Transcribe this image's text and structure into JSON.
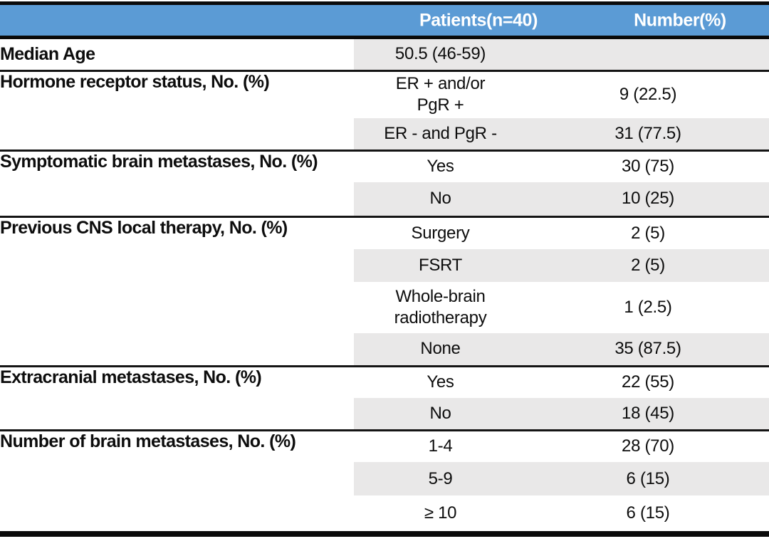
{
  "header": {
    "patients": "Patients(n=40)",
    "number": "Number(%)"
  },
  "sections": [
    {
      "label": "Median Age",
      "rows": [
        {
          "patients": "50.5 (46-59)",
          "number": ""
        }
      ]
    },
    {
      "label": "Hormone receptor status, No. (%)",
      "rows": [
        {
          "patients": "ER + and/or\nPgR +",
          "number": "9 (22.5)"
        },
        {
          "patients": "ER - and PgR -",
          "number": "31 (77.5)"
        }
      ]
    },
    {
      "label": "Symptomatic brain metastases, No. (%)",
      "rows": [
        {
          "patients": "Yes",
          "number": "30 (75)"
        },
        {
          "patients": "No",
          "number": "10 (25)"
        }
      ]
    },
    {
      "label": "Previous CNS local therapy, No. (%)",
      "rows": [
        {
          "patients": "Surgery",
          "number": "2 (5)"
        },
        {
          "patients": "FSRT",
          "number": "2 (5)"
        },
        {
          "patients": "Whole-brain\nradiotherapy",
          "number": "1 (2.5)"
        },
        {
          "patients": "None",
          "number": "35 (87.5)"
        }
      ]
    },
    {
      "label": "Extracranial metastases, No. (%)",
      "rows": [
        {
          "patients": "Yes",
          "number": "22 (55)"
        },
        {
          "patients": "No",
          "number": "18 (45)"
        }
      ]
    },
    {
      "label": "Number of brain metastases, No. (%)",
      "rows": [
        {
          "patients": "1-4",
          "number": "28 (70)"
        },
        {
          "patients": "5-9",
          "number": "6 (15)"
        },
        {
          "patients": "≥ 10",
          "number": "6 (15)"
        }
      ]
    }
  ],
  "colors": {
    "header_bg": "#5B9BD5",
    "header_text": "#FFFFFF",
    "row_shade": "#E9E8E8",
    "border": "#000000"
  }
}
